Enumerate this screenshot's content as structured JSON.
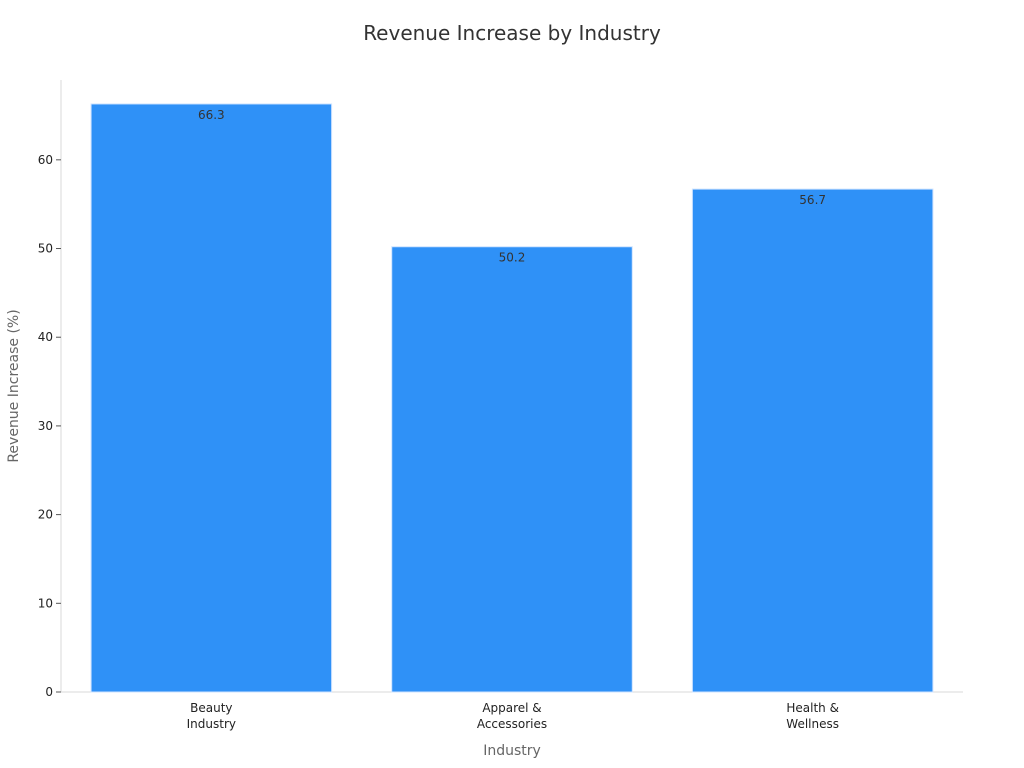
{
  "chart_data": {
    "type": "bar",
    "title": "Revenue Increase by Industry",
    "xlabel": "Industry",
    "ylabel": "Revenue Increase (%)",
    "categories": [
      [
        "Beauty",
        "Industry"
      ],
      [
        "Apparel &",
        "Accessories"
      ],
      [
        "Health &",
        "Wellness"
      ]
    ],
    "values": [
      66.3,
      50.2,
      56.7
    ],
    "ylim": [
      0,
      69
    ],
    "yticks": [
      0,
      10,
      20,
      30,
      40,
      50,
      60
    ],
    "bar_color": "#2f91f7",
    "bar_edge_color": "#cfe3ff",
    "grid": false,
    "legend": "none"
  }
}
